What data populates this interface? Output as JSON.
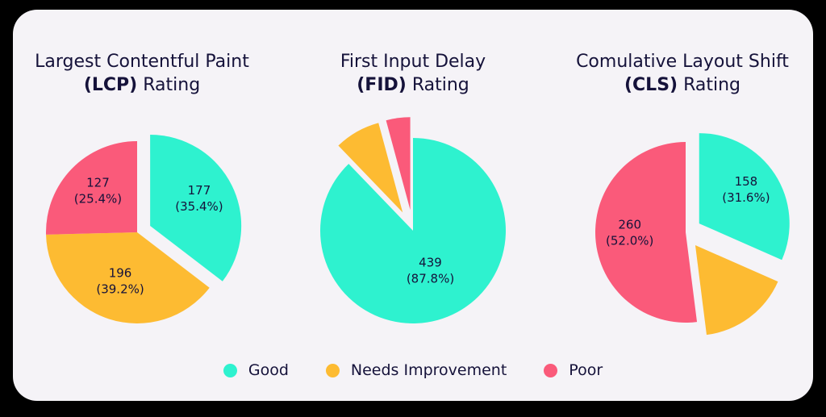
{
  "colors": {
    "good": "#2ef2cf",
    "needs_improvement": "#fdbb32",
    "poor": "#fa5a7a",
    "text": "#15123a"
  },
  "legend": [
    {
      "key": "good",
      "label": "Good"
    },
    {
      "key": "needs_improvement",
      "label": "Needs Improvement"
    },
    {
      "key": "poor",
      "label": "Poor"
    }
  ],
  "chart_data": [
    {
      "type": "pie",
      "title_line1": "Largest Contentful Paint",
      "title_abbr": "(LCP)",
      "title_suffix": " Rating",
      "slices": [
        {
          "key": "good",
          "value": 177,
          "percent": 35.4,
          "label": "177",
          "pct_label": "(35.4%)",
          "exploded": true
        },
        {
          "key": "needs_improvement",
          "value": 196,
          "percent": 39.2,
          "label": "196",
          "pct_label": "(39.2%)",
          "exploded": false
        },
        {
          "key": "poor",
          "value": 127,
          "percent": 25.4,
          "label": "127",
          "pct_label": "(25.4%)",
          "exploded": false
        }
      ]
    },
    {
      "type": "pie",
      "title_line1": "First Input Delay",
      "title_abbr": "(FID)",
      "title_suffix": " Rating",
      "slices": [
        {
          "key": "good",
          "value": 439,
          "percent": 87.8,
          "label": "439",
          "pct_label": "(87.8%)",
          "exploded": false
        },
        {
          "key": "needs_improvement",
          "value": 40,
          "percent": 8.0,
          "label": "",
          "pct_label": "",
          "exploded": true
        },
        {
          "key": "poor",
          "value": 21,
          "percent": 4.2,
          "label": "",
          "pct_label": "",
          "exploded": true
        }
      ]
    },
    {
      "type": "pie",
      "title_line1": "Comulative Layout Shift",
      "title_abbr": "(CLS)",
      "title_suffix": " Rating",
      "slices": [
        {
          "key": "good",
          "value": 158,
          "percent": 31.6,
          "label": "158",
          "pct_label": "(31.6%)",
          "exploded": true
        },
        {
          "key": "needs_improvement",
          "value": 82,
          "percent": 16.4,
          "label": "",
          "pct_label": "",
          "exploded": true
        },
        {
          "key": "poor",
          "value": 260,
          "percent": 52.0,
          "label": "260",
          "pct_label": "(52.0%)",
          "exploded": false
        }
      ]
    }
  ]
}
